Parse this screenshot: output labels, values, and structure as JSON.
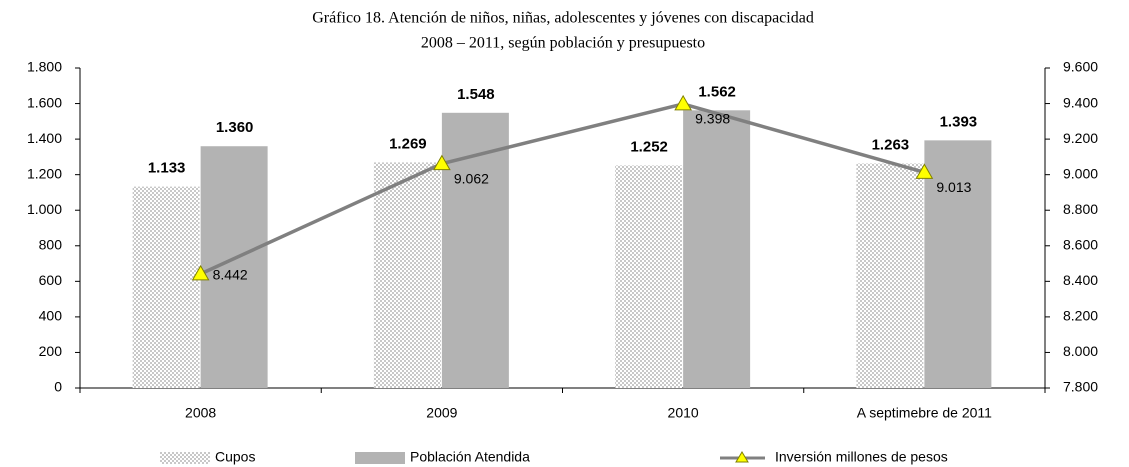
{
  "chart_data": {
    "type": "bar_line",
    "title": "Gráfico 18. Atención de niños, niñas, adolescentes y jóvenes  con discapacidad",
    "subtitle": "2008 – 2011, según población y presupuesto",
    "categories": [
      "2008",
      "2009",
      "2010",
      "A septimebre de 2011"
    ],
    "series": [
      {
        "name": "Cupos",
        "type": "bar",
        "color": "#c8c8c8",
        "values": [
          1133,
          1269,
          1252,
          1263
        ],
        "value_labels": [
          "1.133",
          "1.269",
          "1.252",
          "1.263"
        ]
      },
      {
        "name": "Población Atendida",
        "type": "bar",
        "color": "#b3b3b3",
        "values": [
          1360,
          1548,
          1562,
          1393
        ],
        "value_labels": [
          "1.360",
          "1.548",
          "1.562",
          "1.393"
        ]
      },
      {
        "name": "Inversión millones de pesos",
        "type": "line",
        "axis": "y2",
        "color": "#808080",
        "marker_color": "#ffff00",
        "values": [
          8442,
          9062,
          9398,
          9013
        ],
        "value_labels": [
          "8.442",
          "9.062",
          "9.398",
          "9.013"
        ]
      }
    ],
    "ylim": [
      0,
      1800
    ],
    "yticks": [
      0,
      200,
      400,
      600,
      800,
      {
        "value": 1000,
        "label": "1.000"
      },
      {
        "value": 1200,
        "label": "1.200"
      },
      {
        "value": 1400,
        "label": "1.400"
      },
      {
        "value": 1600,
        "label": "1.600"
      },
      {
        "value": 1800,
        "label": "1.800"
      }
    ],
    "y2lim": [
      7800,
      9600
    ],
    "y2ticks": [
      {
        "value": 7800,
        "label": "7.800"
      },
      {
        "value": 8000,
        "label": "8.000"
      },
      {
        "value": 8200,
        "label": "8.200"
      },
      {
        "value": 8400,
        "label": "8.400"
      },
      {
        "value": 8600,
        "label": "8.600"
      },
      {
        "value": 8800,
        "label": "8.800"
      },
      {
        "value": 9000,
        "label": "9.000"
      },
      {
        "value": 9200,
        "label": "9.200"
      },
      {
        "value": 9400,
        "label": "9.400"
      },
      {
        "value": 9600,
        "label": "9.600"
      }
    ],
    "grid": false,
    "legend": "bottom"
  }
}
